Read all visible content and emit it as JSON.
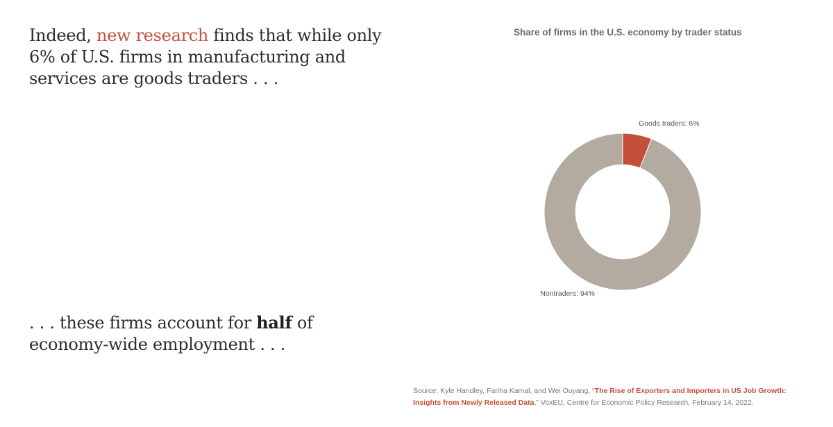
{
  "narrative": {
    "intro_pre": "Indeed, ",
    "intro_link": "new research",
    "intro_post": " finds that while only 6% of U.S. firms in manufacturing and services are goods traders . . .",
    "outro_pre": ". . . these firms account for ",
    "outro_bold": "half",
    "outro_post": " of economy-wide employment . . ."
  },
  "chart_data": {
    "type": "pie",
    "title": "Share of firms in the U.S. economy by trader status",
    "slices": [
      {
        "label": "Goods traders: 6%",
        "value": 6,
        "color": "#c4503a"
      },
      {
        "label": "Nontraders: 94%",
        "value": 94,
        "color": "#b3aba0"
      }
    ],
    "hole": 0.6
  },
  "source": {
    "prefix": "Source: Kyle Handley, Fariha Kamal, and Wei Ouyang, “",
    "link": "The Rise of Exporters and Importers in US Job Growth: Insights from Newly Released Data",
    "suffix": ",” VoxEU, Centre for Economic Policy Research, February 14, 2022."
  },
  "colors": {
    "accent": "#c4503a",
    "nontrader": "#b3aba0"
  }
}
